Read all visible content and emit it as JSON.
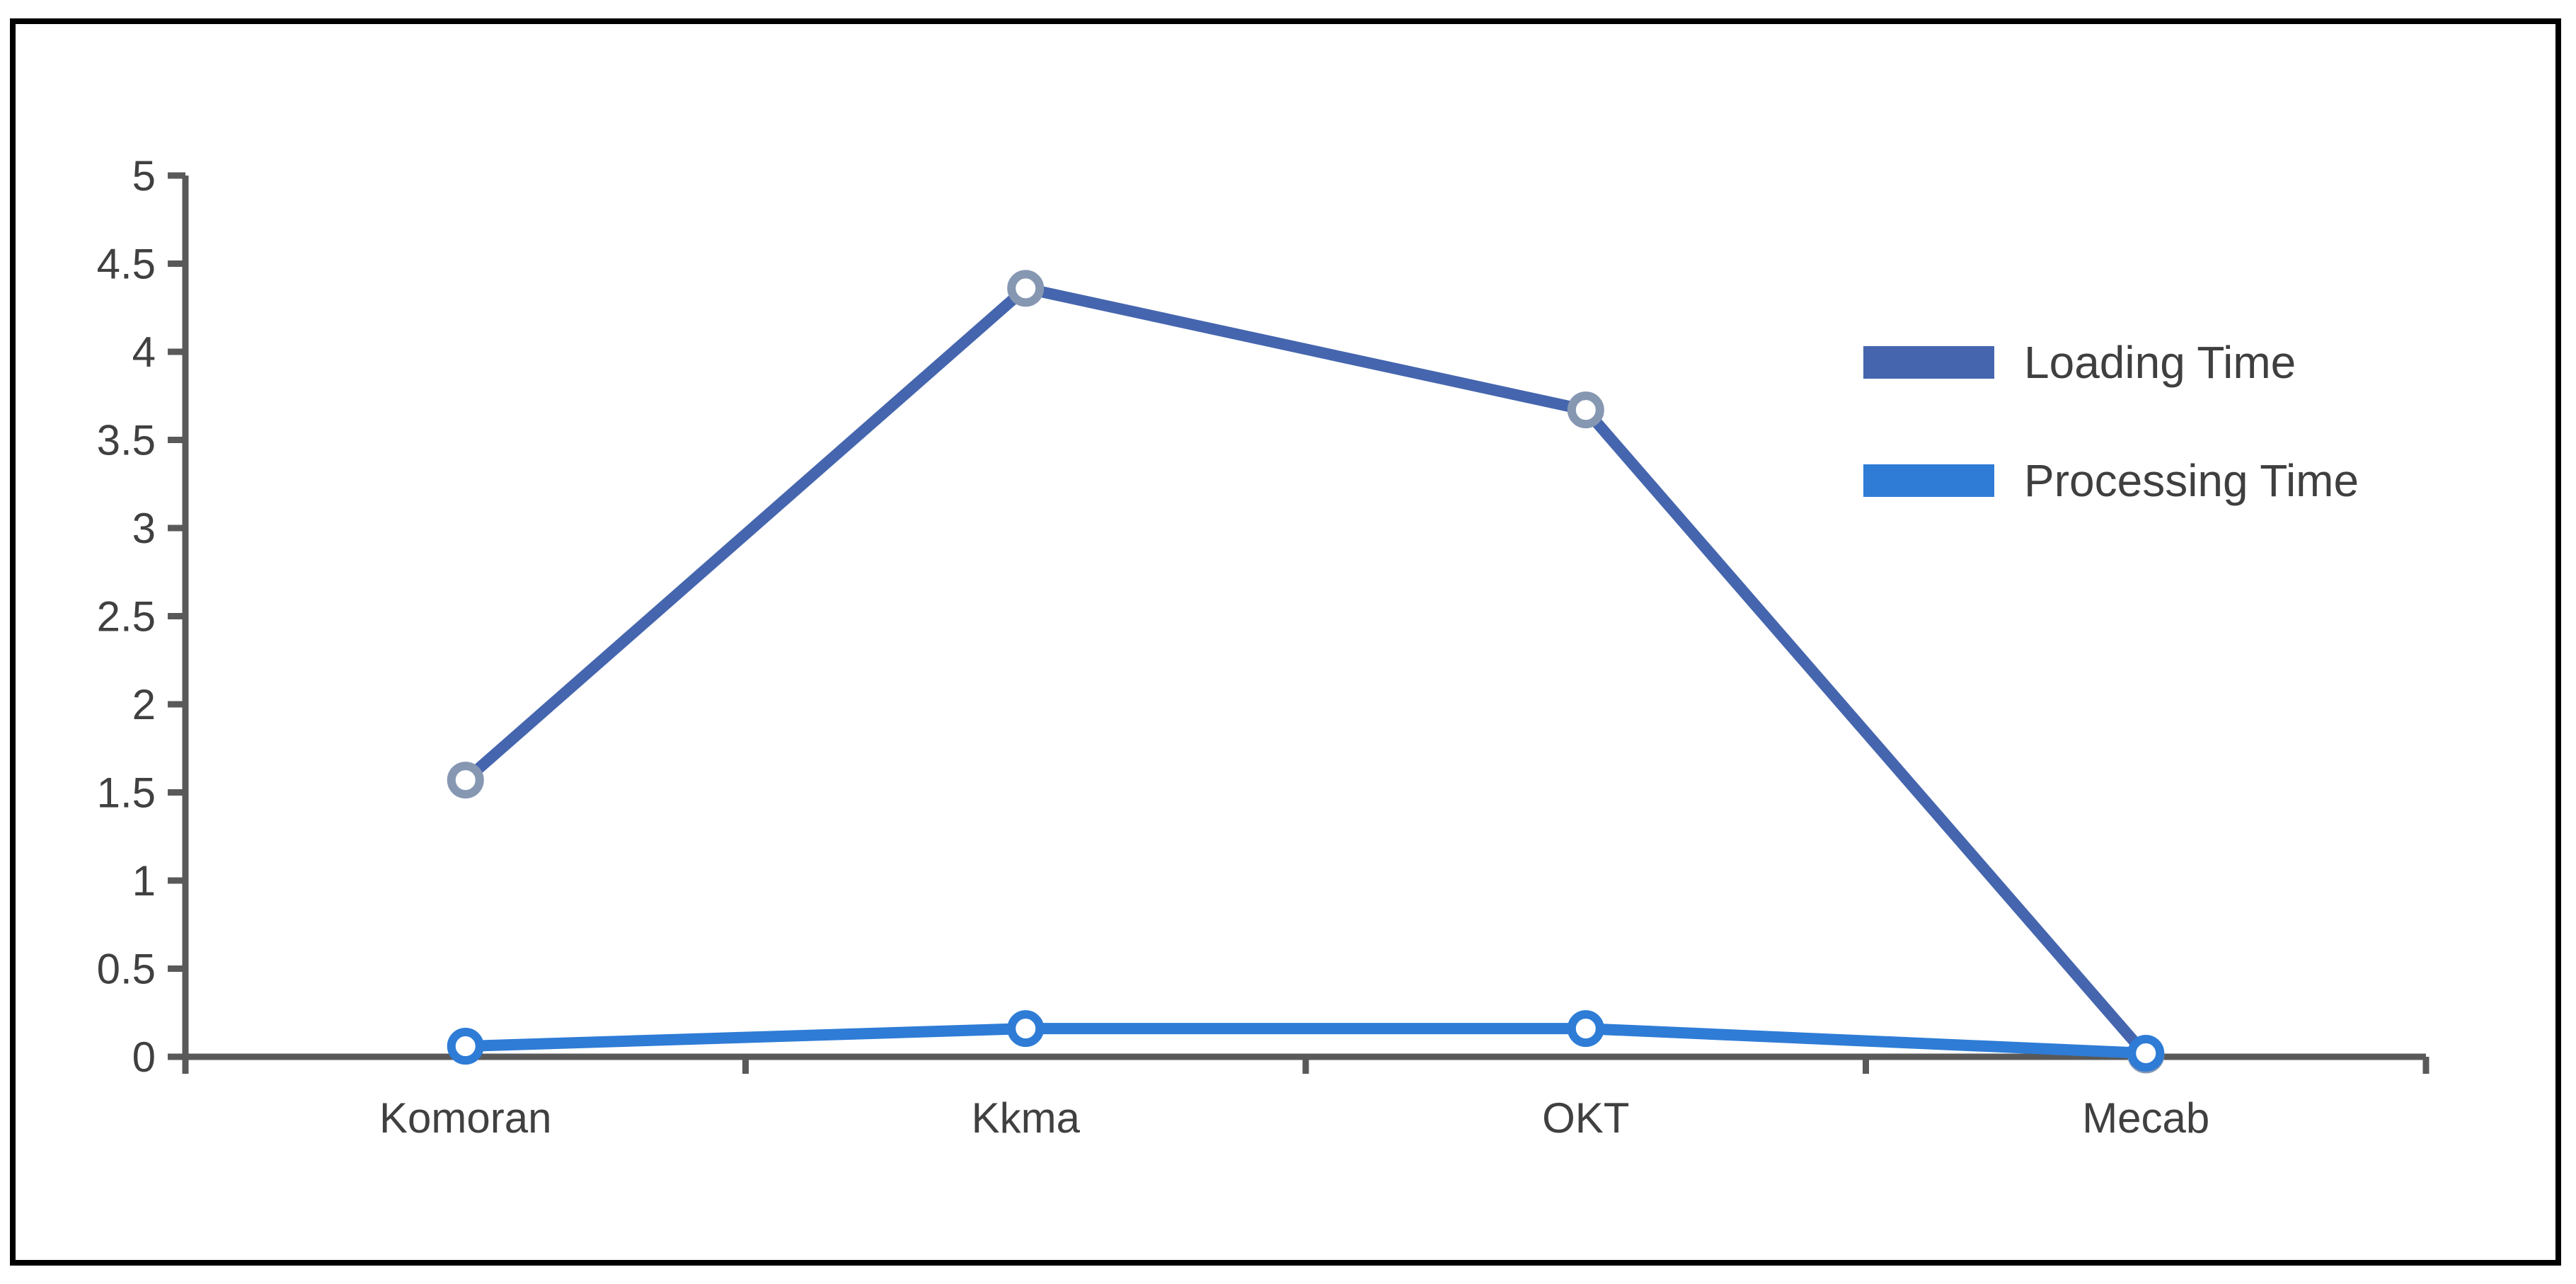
{
  "chart_data": {
    "type": "line",
    "title": "",
    "xlabel": "",
    "ylabel": "",
    "categories": [
      "Komoran",
      "Kkma",
      "OKT",
      "Mecab"
    ],
    "series": [
      {
        "name": "Loading Time",
        "line_color": "#4565AE",
        "marker_stroke": "#8697B2",
        "values": [
          1.57,
          4.36,
          3.67,
          0.01
        ]
      },
      {
        "name": "Processing Time",
        "line_color": "#2E7CD6",
        "marker_stroke": "#2E7CD6",
        "values": [
          0.06,
          0.16,
          0.16,
          0.02
        ]
      }
    ],
    "ylim": [
      0,
      5
    ],
    "ytick_step": 0.5,
    "ytick_labels": [
      "0",
      "0.5",
      "1",
      "1.5",
      "2",
      "2.5",
      "3",
      "3.5",
      "4",
      "4.5",
      "5"
    ],
    "grid": false,
    "legend_position": "right-inside",
    "marker_fill": "#FFFFFF",
    "axis_color": "#595959",
    "tick_label_color": "#404040",
    "legend_text_color": "#3F3F3F"
  }
}
